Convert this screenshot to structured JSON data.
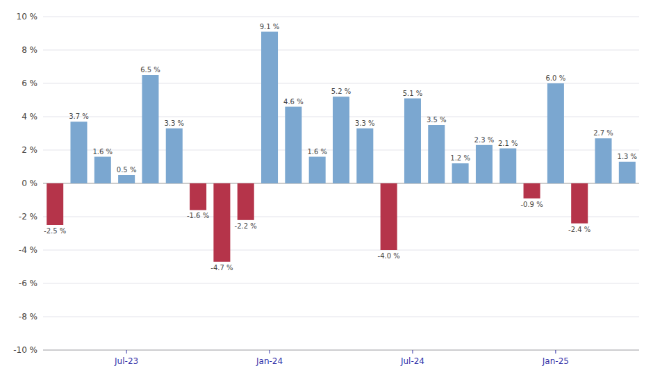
{
  "chart_data": {
    "type": "bar",
    "categories": [
      null,
      null,
      null,
      "Jul-23",
      null,
      null,
      null,
      null,
      null,
      "Jan-24",
      null,
      null,
      null,
      null,
      null,
      "Jul-24",
      null,
      null,
      null,
      null,
      null,
      "Jan-25",
      null,
      null,
      null
    ],
    "values": [
      -2.5,
      3.7,
      1.6,
      0.5,
      6.5,
      3.3,
      -1.6,
      -4.7,
      -2.2,
      9.1,
      4.6,
      1.6,
      5.2,
      3.3,
      -4.0,
      5.1,
      3.5,
      1.2,
      2.3,
      2.1,
      -0.9,
      6.0,
      -2.4,
      2.7,
      1.3
    ],
    "value_labels": [
      "-2.5 %",
      "3.7 %",
      "1.6 %",
      "0.5 %",
      "6.5 %",
      "3.3 %",
      "-1.6 %",
      "-4.7 %",
      "-2.2 %",
      "9.1 %",
      "4.6 %",
      "1.6 %",
      "5.2 %",
      "3.3 %",
      "-4.0 %",
      "5.1 %",
      "3.5 %",
      "1.2 %",
      "2.3 %",
      "2.1 %",
      "-0.9 %",
      "6.0 %",
      "-2.4 %",
      "2.7 %",
      "1.3 %"
    ],
    "colors": [
      "#B5344A",
      "#7BA7D0",
      "#7BA7D0",
      "#7BA7D0",
      "#7BA7D0",
      "#7BA7D0",
      "#B5344A",
      "#B5344A",
      "#B5344A",
      "#7BA7D0",
      "#7BA7D0",
      "#7BA7D0",
      "#7BA7D0",
      "#7BA7D0",
      "#B5344A",
      "#7BA7D0",
      "#7BA7D0",
      "#7BA7D0",
      "#7BA7D0",
      "#7BA7D0",
      "#B5344A",
      "#7BA7D0",
      "#B5344A",
      "#7BA7D0",
      "#7BA7D0"
    ],
    "ylim": [
      -10,
      10
    ],
    "yticks": [
      {
        "value": -10,
        "label": "-10 %"
      },
      {
        "value": -8,
        "label": "-8 %"
      },
      {
        "value": -6,
        "label": "-6 %"
      },
      {
        "value": -4,
        "label": "-4 %"
      },
      {
        "value": -2,
        "label": "-2 %"
      },
      {
        "value": 0,
        "label": "0 %"
      },
      {
        "value": 2,
        "label": "2 %"
      },
      {
        "value": 4,
        "label": "4 %"
      },
      {
        "value": 6,
        "label": "6 %"
      },
      {
        "value": 8,
        "label": "8 %"
      },
      {
        "value": 10,
        "label": "10 %"
      }
    ],
    "grid": true,
    "data_labels": true
  }
}
